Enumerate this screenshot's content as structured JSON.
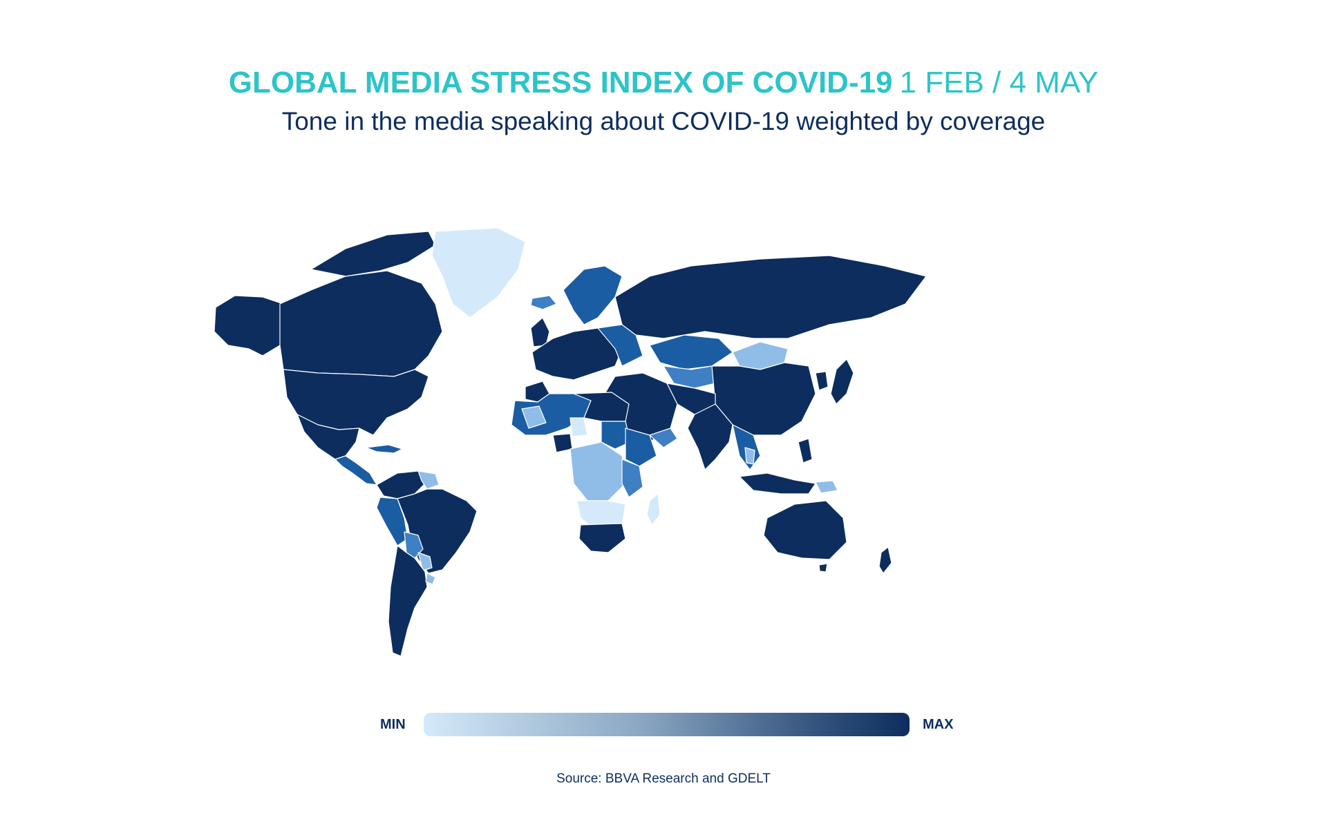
{
  "header": {
    "title": "GLOBAL MEDIA STRESS INDEX OF COVID-19",
    "date_range": "1 FEB / 4 MAY",
    "subtitle": "Tone in the media speaking about COVID-19 weighted by coverage"
  },
  "legend": {
    "min_label": "MIN",
    "max_label": "MAX",
    "color_min": "#d4eafa",
    "color_max": "#0c2d5e"
  },
  "source": "Source: BBVA Research and GDELT",
  "colors": {
    "title": "#2dc4c9",
    "text": "#0c2d5e",
    "level_max": "#0c2d5e",
    "level_high": "#1a5da3",
    "level_mid": "#3f7fc4",
    "level_low": "#8fbde8",
    "level_min": "#d4eafa"
  }
}
